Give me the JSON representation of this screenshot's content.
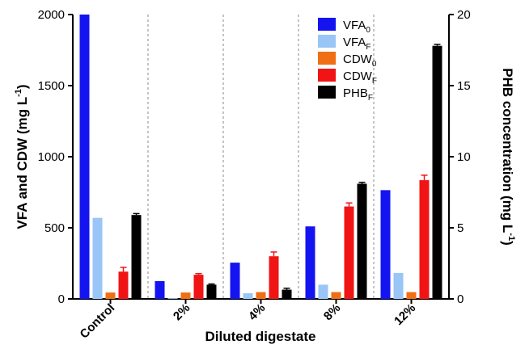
{
  "chart_data": {
    "type": "bar",
    "categories": [
      "Control",
      "2%",
      "4%",
      "8%",
      "12%"
    ],
    "xlabel": "Diluted digestate",
    "ylabel_left": {
      "main": "VFA and CDW (mg L",
      "sup": "-1",
      "close": ")"
    },
    "ylabel_right": {
      "main": "PHB concentration (mg L",
      "sup": "-1",
      "close": ")"
    },
    "ylim_left": [
      0,
      2000
    ],
    "yticks_left": [
      "0",
      "500",
      "1000",
      "1500",
      "2000"
    ],
    "ylim_right": [
      0,
      20
    ],
    "yticks_right": [
      "0",
      "5",
      "10",
      "15",
      "20"
    ],
    "grid": false,
    "category_separators": "dashed",
    "legend": {
      "placement": "top-right"
    },
    "series": [
      {
        "name": {
          "base": "VFA",
          "sub": "0"
        },
        "color": "#1414F0",
        "axis": "left",
        "values": [
          2000,
          125,
          255,
          510,
          765
        ],
        "errors": [
          null,
          null,
          null,
          null,
          null
        ]
      },
      {
        "name": {
          "base": "VFA",
          "sub": "F"
        },
        "color": "#99C5F7",
        "axis": "left",
        "values": [
          570,
          5,
          40,
          100,
          182
        ],
        "errors": [
          null,
          null,
          null,
          null,
          null
        ]
      },
      {
        "name": {
          "base": "CDW",
          "sub": "0"
        },
        "color": "#F06E14",
        "axis": "left",
        "values": [
          45,
          45,
          48,
          48,
          48
        ],
        "errors": [
          null,
          null,
          null,
          null,
          null
        ]
      },
      {
        "name": {
          "base": "CDW",
          "sub": "F"
        },
        "color": "#F01414",
        "axis": "left",
        "values": [
          192,
          170,
          300,
          650,
          835
        ],
        "errors": [
          30,
          8,
          30,
          25,
          35
        ]
      },
      {
        "name": {
          "base": "PHB",
          "sub": "F"
        },
        "color": "#000000",
        "axis": "right",
        "values": [
          5.9,
          1.0,
          0.65,
          8.1,
          17.8
        ],
        "errors": [
          0.1,
          0.05,
          0.1,
          0.1,
          0.1
        ]
      }
    ]
  }
}
